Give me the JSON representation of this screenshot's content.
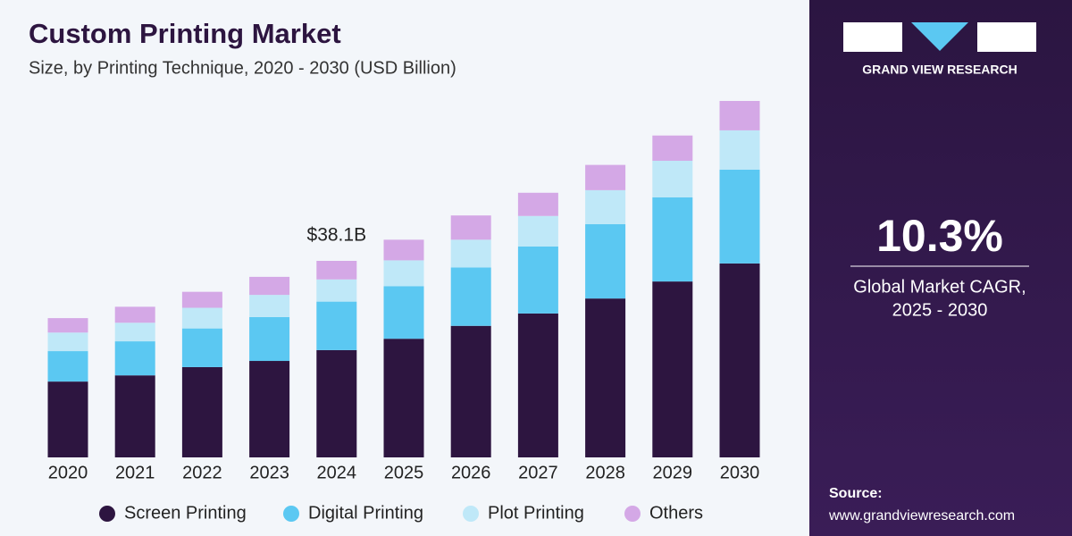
{
  "chart_data": {
    "type": "stacked_bar",
    "title": "Custom Printing Market",
    "subtitle": "Size, by Printing Technique, 2020 - 2030 (USD Billion)",
    "categories": [
      "2020",
      "2021",
      "2022",
      "2023",
      "2024",
      "2025",
      "2026",
      "2027",
      "2028",
      "2029",
      "2030"
    ],
    "series": [
      {
        "name": "Screen Printing",
        "color": "#2d1540",
        "values": [
          14.7,
          15.9,
          17.5,
          18.7,
          20.8,
          23.0,
          25.5,
          27.9,
          30.8,
          34.1,
          37.6
        ]
      },
      {
        "name": "Digital Printing",
        "color": "#5bc8f2",
        "values": [
          5.9,
          6.6,
          7.5,
          8.5,
          9.4,
          10.2,
          11.3,
          13.0,
          14.4,
          16.3,
          18.2
        ]
      },
      {
        "name": "Plot Printing",
        "color": "#bfe8f8",
        "values": [
          3.6,
          3.6,
          4.0,
          4.3,
          4.3,
          5.0,
          5.4,
          5.9,
          6.6,
          7.1,
          7.6
        ]
      },
      {
        "name": "Others",
        "color": "#d4a8e6",
        "values": [
          2.8,
          3.1,
          3.1,
          3.5,
          3.6,
          4.0,
          4.7,
          4.5,
          4.9,
          4.9,
          5.7
        ]
      }
    ],
    "annotation": {
      "category": "2024",
      "value": 38.1,
      "label": "$38.1B"
    }
  },
  "sidebar": {
    "brand": "GRAND VIEW RESEARCH",
    "cagr": "10.3%",
    "cagr_caption": [
      "Global Market CAGR,",
      "2025 - 2030"
    ],
    "source_label": "Source:",
    "source_url": "www.grandviewresearch.com"
  }
}
